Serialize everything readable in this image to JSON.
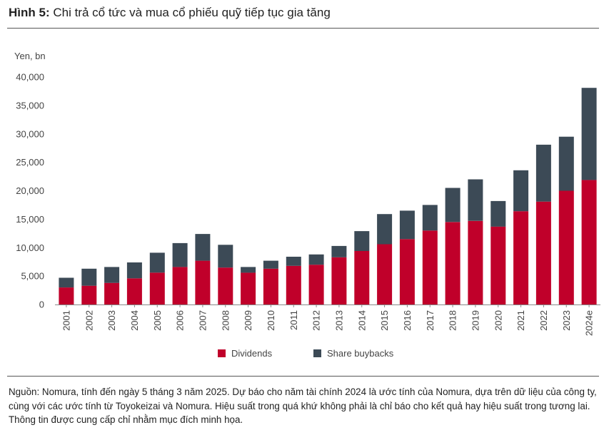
{
  "title": {
    "label": "Hình 5:",
    "text": "Chi trả cổ tức và mua cổ phiếu quỹ tiếp tục gia tăng"
  },
  "chart_data": {
    "type": "bar",
    "stacked": true,
    "ylabel": "Yen, bn",
    "ylim": [
      0,
      40000
    ],
    "yticks": [
      0,
      5000,
      10000,
      15000,
      20000,
      25000,
      30000,
      35000,
      40000
    ],
    "ytick_labels": [
      "0",
      "5,000",
      "10,000",
      "15,000",
      "20,000",
      "25,000",
      "30,000",
      "35,000",
      "40,000"
    ],
    "categories": [
      "2001",
      "2002",
      "2003",
      "2004",
      "2005",
      "2006",
      "2007",
      "2008",
      "2009",
      "2010",
      "2011",
      "2012",
      "2013",
      "2014",
      "2015",
      "2016",
      "2017",
      "2018",
      "2019",
      "2020",
      "2021",
      "2022",
      "2023",
      "2024e"
    ],
    "series": [
      {
        "name": "Dividends",
        "color": "#c0002a",
        "values": [
          3000,
          3300,
          3800,
          4600,
          5600,
          6600,
          7700,
          6500,
          5600,
          6300,
          6800,
          7000,
          8300,
          9400,
          10600,
          11500,
          13000,
          14500,
          14700,
          13700,
          16400,
          18100,
          20000,
          21900
        ]
      },
      {
        "name": "Share buybacks",
        "color": "#3c4a56",
        "values": [
          1700,
          3000,
          2800,
          2800,
          3500,
          4200,
          4700,
          4000,
          1000,
          1400,
          1600,
          1800,
          2000,
          3500,
          5300,
          5000,
          4500,
          6000,
          7300,
          4500,
          7200,
          10000,
          9500,
          16200
        ]
      }
    ],
    "legend": [
      "Dividends",
      "Share buybacks"
    ],
    "legend_position": "bottom"
  },
  "source_note": "Nguồn: Nomura, tính đến ngày 5 tháng 3 năm 2025. Dự báo cho năm tài chính 2024 là ước tính của Nomura, dựa trên dữ liệu của công ty, cùng với các ước tính từ Toyokeizai và Nomura. Hiệu suất trong quá khứ không phải là chỉ báo cho kết quả hay hiệu suất trong tương lai. Thông tin được cung cấp chỉ nhằm mục đích minh họa."
}
